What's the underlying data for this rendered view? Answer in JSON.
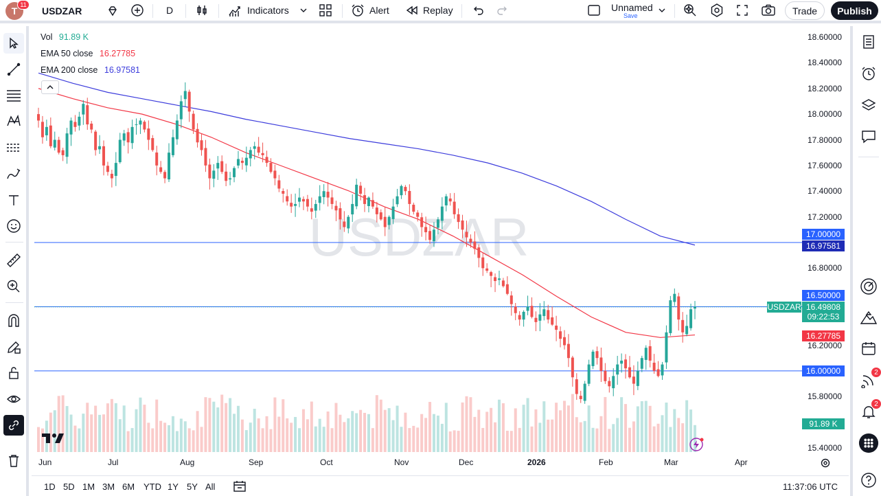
{
  "topbar": {
    "avatar_letter": "T",
    "notification_count": "11",
    "symbol": "USDZAR",
    "interval": "D",
    "indicators_label": "Indicators",
    "alert_label": "Alert",
    "replay_label": "Replay",
    "layout_name": "Unnamed",
    "layout_save": "Save",
    "trade_label": "Trade",
    "publish_label": "Publish"
  },
  "legend": {
    "vol_label": "Vol",
    "vol_value": "91.89 K",
    "ema50_label": "EMA 50 close",
    "ema50_value": "16.27785",
    "ema200_label": "EMA 200 close",
    "ema200_value": "16.97581"
  },
  "watermark": "USDZAR",
  "price_axis": {
    "ticks": [
      "18.60000",
      "18.40000",
      "18.20000",
      "18.00000",
      "17.80000",
      "17.60000",
      "17.40000",
      "17.20000",
      "16.80000",
      "16.20000",
      "15.80000",
      "15.40000"
    ],
    "tag_17": "17.00000",
    "tag_ema200": "16.97581",
    "tag_1650": "16.50000",
    "symbol_tag": "USDZAR",
    "last_price": "16.49808",
    "countdown": "09:22:53",
    "tag_ema50": "16.27785",
    "tag_16": "16.00000",
    "vol_tag": "91.89 K"
  },
  "time_axis": {
    "ticks": [
      "Jun",
      "Jul",
      "Aug",
      "Sep",
      "Oct",
      "Nov",
      "Dec",
      "2026",
      "Feb",
      "Mar",
      "Apr"
    ]
  },
  "bottombar": {
    "ranges": [
      "1D",
      "5D",
      "1M",
      "3M",
      "6M",
      "YTD",
      "1Y",
      "5Y",
      "All"
    ],
    "clock": "11:37:06 UTC"
  },
  "right_toolbar": {
    "ideas_badge": "2",
    "alerts_badge": "2"
  },
  "colors": {
    "up": "#26a69a",
    "down": "#ef5350",
    "ema50": "#f23645",
    "ema200": "#3c3cdc",
    "hline": "#2962ff",
    "last_price_bg": "#22ab94"
  },
  "chart_data": {
    "type": "candlestick",
    "title": "USDZAR",
    "interval": "D",
    "ylim": [
      15.4,
      18.6
    ],
    "x_range": [
      "Jun",
      "Apr"
    ],
    "horizontal_levels": [
      17.0,
      16.5,
      16.0
    ],
    "last_price": 16.49808,
    "closes": [
      17.95,
      17.82,
      17.9,
      17.75,
      17.8,
      17.7,
      17.68,
      17.85,
      17.95,
      17.9,
      17.98,
      18.08,
      17.92,
      17.88,
      17.72,
      17.75,
      17.6,
      17.55,
      17.5,
      17.62,
      17.8,
      17.85,
      17.78,
      17.9,
      17.92,
      17.95,
      17.88,
      17.8,
      17.72,
      17.6,
      17.55,
      17.5,
      17.7,
      17.82,
      17.95,
      18.1,
      18.18,
      18.02,
      17.88,
      17.78,
      17.72,
      17.6,
      17.5,
      17.56,
      17.62,
      17.55,
      17.48,
      17.5,
      17.58,
      17.65,
      17.62,
      17.66,
      17.72,
      17.75,
      17.7,
      17.68,
      17.62,
      17.55,
      17.5,
      17.42,
      17.38,
      17.32,
      17.28,
      17.3,
      17.35,
      17.32,
      17.28,
      17.24,
      17.3,
      17.36,
      17.4,
      17.35,
      17.3,
      17.25,
      17.18,
      17.12,
      17.2,
      17.3,
      17.45,
      17.38,
      17.3,
      17.35,
      17.28,
      17.22,
      17.18,
      17.12,
      17.2,
      17.28,
      17.36,
      17.44,
      17.4,
      17.3,
      17.24,
      17.2,
      17.12,
      17.08,
      17.02,
      17.1,
      17.18,
      17.28,
      17.36,
      17.32,
      17.22,
      17.16,
      17.1,
      17.04,
      17.0,
      16.95,
      16.88,
      16.8,
      16.78,
      16.74,
      16.7,
      16.72,
      16.66,
      16.6,
      16.52,
      16.45,
      16.4,
      16.46,
      16.5,
      16.42,
      16.38,
      16.44,
      16.48,
      16.4,
      16.36,
      16.32,
      16.25,
      16.2,
      16.1,
      15.95,
      15.82,
      15.78,
      15.9,
      16.05,
      16.15,
      16.1,
      16.0,
      15.92,
      15.88,
      15.96,
      16.05,
      16.08,
      16.02,
      15.95,
      15.9,
      16.0,
      16.1,
      16.18,
      16.08,
      16.0,
      15.96,
      16.05,
      16.3,
      16.55,
      16.6,
      16.4,
      16.3,
      16.35,
      16.48,
      16.5
    ],
    "ema50": [
      18.2,
      18.12,
      18.05,
      18.0,
      17.92,
      17.82,
      17.7,
      17.6,
      17.5,
      17.4,
      17.28,
      17.18,
      17.05,
      16.9,
      16.75,
      16.58,
      16.42,
      16.3,
      16.26,
      16.28
    ],
    "ema200": [
      18.32,
      18.24,
      18.17,
      18.12,
      18.07,
      18.02,
      17.96,
      17.91,
      17.86,
      17.81,
      17.77,
      17.73,
      17.68,
      17.62,
      17.54,
      17.44,
      17.32,
      17.18,
      17.05,
      16.98
    ]
  }
}
